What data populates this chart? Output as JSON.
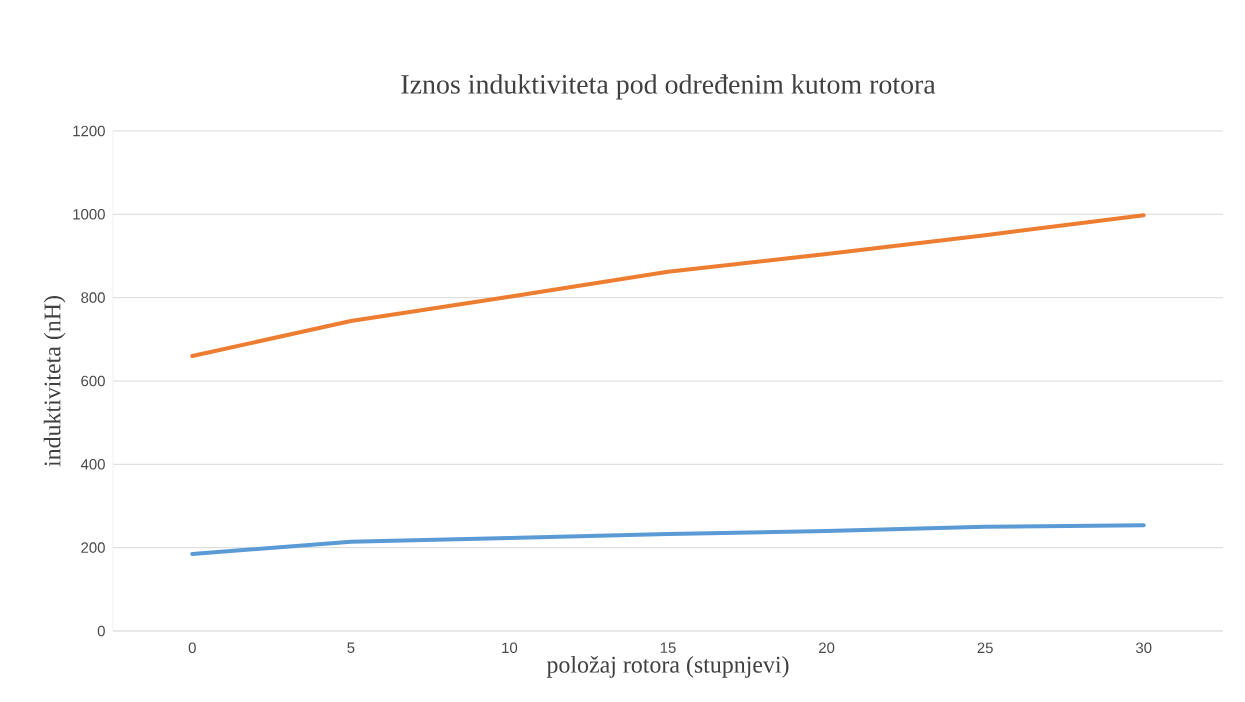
{
  "chart_data": {
    "type": "line",
    "title": "Iznos induktiviteta pod određenim kutom rotora",
    "xlabel": "položaj rotora (stupnjevi)",
    "ylabel": "induktiviteta (nH)",
    "categories": [
      "0",
      "5",
      "10",
      "15",
      "20",
      "25",
      "30"
    ],
    "series": [
      {
        "color": "#ed7d31",
        "values": [
          660,
          744,
          802,
          862,
          905,
          950,
          998
        ]
      },
      {
        "color": "#5b9bd5",
        "values": [
          185,
          214,
          223,
          233,
          240,
          250,
          254
        ]
      }
    ],
    "ylim": [
      0,
      1200
    ],
    "yticks": [
      0,
      200,
      400,
      600,
      800,
      1000,
      1200
    ],
    "grid": "y",
    "marker": "none",
    "line_style": "solid"
  }
}
